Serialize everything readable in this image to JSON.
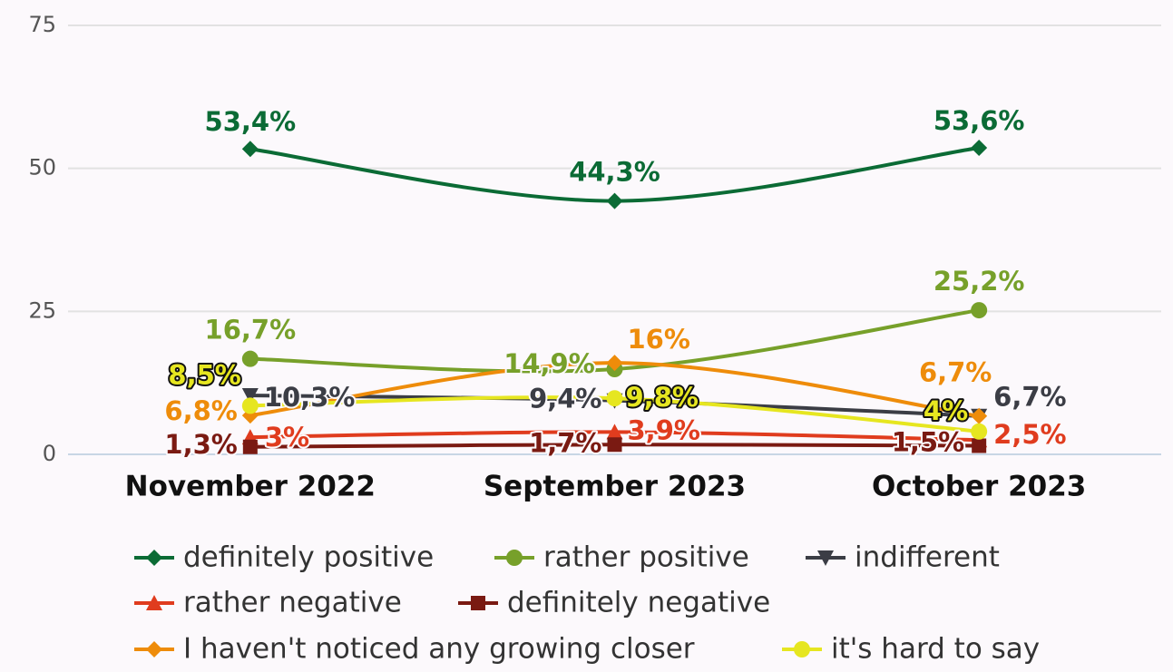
{
  "chart_data": {
    "type": "line",
    "categories": [
      "November 2022",
      "September 2023",
      "October 2023"
    ],
    "ylim": [
      0,
      75
    ],
    "yticks": [
      0,
      25,
      50,
      75
    ],
    "grid": true,
    "legend": "bottom",
    "series": [
      {
        "name": "definitely positive",
        "color": "#0b6b35",
        "values": [
          53.4,
          44.3,
          53.6
        ],
        "value_labels": [
          "53,4%",
          "44,3%",
          "53,6%"
        ]
      },
      {
        "name": "rather positive",
        "color": "#77a02a",
        "values": [
          16.7,
          14.9,
          25.2
        ],
        "value_labels": [
          "16,7%",
          "14,9%",
          "25,2%"
        ]
      },
      {
        "name": "indifferent",
        "color": "#3b3d45",
        "values": [
          10.3,
          9.4,
          6.7
        ],
        "value_labels": [
          "10,3%",
          "9,4%",
          "6,7%"
        ]
      },
      {
        "name": "rather negative",
        "color": "#e03c1e",
        "values": [
          3,
          3.9,
          2.5
        ],
        "value_labels": [
          "3%",
          "3,9%",
          "2,5%"
        ]
      },
      {
        "name": "definitely negative",
        "color": "#7a1a12",
        "values": [
          1.3,
          1.7,
          1.5
        ],
        "value_labels": [
          "1,3%",
          "1,7%",
          "1,5%"
        ]
      },
      {
        "name": "I haven't noticed any growing closer",
        "color": "#ee8c0a",
        "values": [
          6.8,
          16,
          6.7
        ],
        "value_labels": [
          "6,8%",
          "16%",
          "6,7%"
        ]
      },
      {
        "name": "it's hard to say",
        "color": "#e6e620",
        "values": [
          8.5,
          9.8,
          4
        ],
        "value_labels": [
          "8,5%",
          "9,8%",
          "4%"
        ]
      }
    ]
  }
}
